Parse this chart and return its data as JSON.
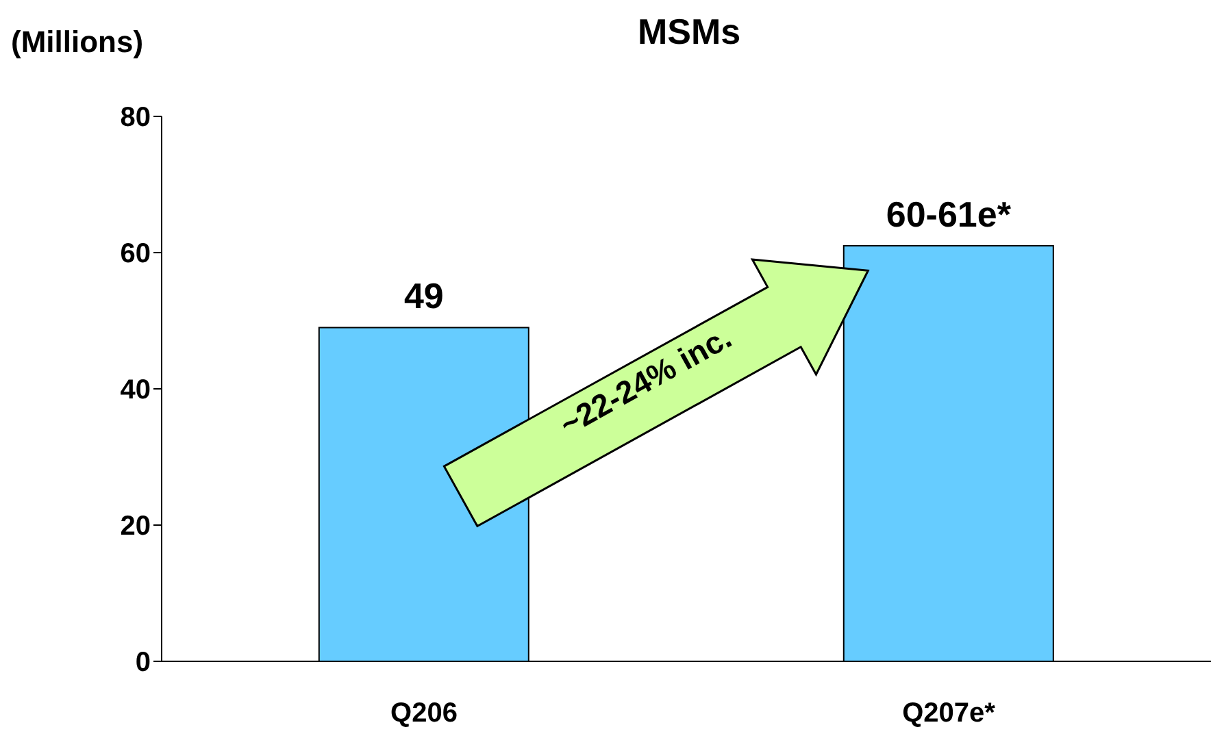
{
  "chart_data": {
    "type": "bar",
    "title": "MSMs",
    "ylabel": "(Millions)",
    "categories": [
      "Q206",
      "Q207e*"
    ],
    "values": [
      49,
      61
    ],
    "value_labels": [
      "49",
      "60-61e*"
    ],
    "color": "#66ccff",
    "ylim": [
      0,
      80
    ],
    "yticks": [
      0,
      20,
      40,
      60,
      80
    ],
    "grid": false,
    "legend": false,
    "annotations": [
      "~22-24% inc."
    ]
  }
}
